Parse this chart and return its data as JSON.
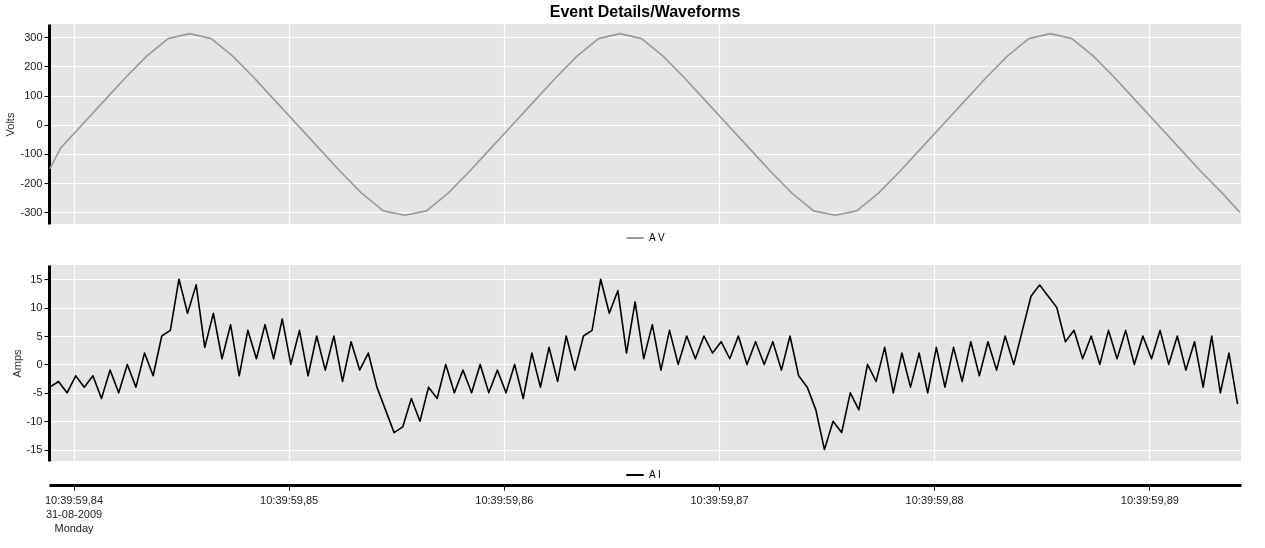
{
  "chart_data": [
    {
      "type": "line",
      "title": "Event Details/Waveforms",
      "ylabel": "Volts",
      "grid": true,
      "legend": "bottom",
      "tick_labels": "y",
      "xlim": [
        "2009-08-31T10:39:59.83886",
        "2009-08-31T10:39:59.89426"
      ],
      "ylim": [
        -340,
        345
      ],
      "yticks": [
        -300,
        -200,
        -100,
        0,
        100,
        200,
        300
      ],
      "xticks": [
        {
          "value": "2009-08-31T10:39:59.84",
          "label": null
        },
        {
          "value": "2009-08-31T10:39:59.85",
          "label": null
        },
        {
          "value": "2009-08-31T10:39:59.86",
          "label": null
        },
        {
          "value": "2009-08-31T10:39:59.87",
          "label": null
        },
        {
          "value": "2009-08-31T10:39:59.88",
          "label": null
        },
        {
          "value": "2009-08-31T10:39:59.89",
          "label": null
        }
      ],
      "series": [
        {
          "name": "A V",
          "color": "#999999",
          "x": [
            "2009-08-31T10:39:59.8389",
            "2009-08-31T10:39:59.8394",
            "2009-08-31T10:39:59.8404",
            "2009-08-31T10:39:59.8414",
            "2009-08-31T10:39:59.8424",
            "2009-08-31T10:39:59.8434",
            "2009-08-31T10:39:59.8444",
            "2009-08-31T10:39:59.8454",
            "2009-08-31T10:39:59.8464",
            "2009-08-31T10:39:59.8474",
            "2009-08-31T10:39:59.8484",
            "2009-08-31T10:39:59.8494",
            "2009-08-31T10:39:59.8504",
            "2009-08-31T10:39:59.8514",
            "2009-08-31T10:39:59.8524",
            "2009-08-31T10:39:59.8534",
            "2009-08-31T10:39:59.8544",
            "2009-08-31T10:39:59.8554",
            "2009-08-31T10:39:59.8564",
            "2009-08-31T10:39:59.8574",
            "2009-08-31T10:39:59.8584",
            "2009-08-31T10:39:59.8594",
            "2009-08-31T10:39:59.8604",
            "2009-08-31T10:39:59.8614",
            "2009-08-31T10:39:59.8624",
            "2009-08-31T10:39:59.8634",
            "2009-08-31T10:39:59.8644",
            "2009-08-31T10:39:59.8654",
            "2009-08-31T10:39:59.8664",
            "2009-08-31T10:39:59.8674",
            "2009-08-31T10:39:59.8684",
            "2009-08-31T10:39:59.8694",
            "2009-08-31T10:39:59.8704",
            "2009-08-31T10:39:59.8714",
            "2009-08-31T10:39:59.8724",
            "2009-08-31T10:39:59.8734",
            "2009-08-31T10:39:59.8744",
            "2009-08-31T10:39:59.8754",
            "2009-08-31T10:39:59.8764",
            "2009-08-31T10:39:59.8774",
            "2009-08-31T10:39:59.8784",
            "2009-08-31T10:39:59.8794",
            "2009-08-31T10:39:59.8804",
            "2009-08-31T10:39:59.8814",
            "2009-08-31T10:39:59.8824",
            "2009-08-31T10:39:59.8834",
            "2009-08-31T10:39:59.8844",
            "2009-08-31T10:39:59.8854",
            "2009-08-31T10:39:59.8864",
            "2009-08-31T10:39:59.8874",
            "2009-08-31T10:39:59.8884",
            "2009-08-31T10:39:59.8894",
            "2009-08-31T10:39:59.8904",
            "2009-08-31T10:39:59.8914",
            "2009-08-31T10:39:59.8924",
            "2009-08-31T10:39:59.8934",
            "2009-08-31T10:39:59.8942"
          ],
          "values": [
            -150,
            -80,
            0,
            80,
            160,
            235,
            295,
            312,
            295,
            235,
            160,
            80,
            0,
            -80,
            -160,
            -235,
            -295,
            -310,
            -295,
            -235,
            -160,
            -80,
            0,
            80,
            160,
            235,
            295,
            312,
            295,
            235,
            160,
            80,
            0,
            -80,
            -160,
            -235,
            -295,
            -310,
            -295,
            -235,
            -160,
            -80,
            0,
            80,
            160,
            235,
            295,
            312,
            295,
            235,
            160,
            80,
            0,
            -80,
            -160,
            -235,
            -300
          ]
        }
      ]
    },
    {
      "type": "line",
      "ylabel": "Amps",
      "grid": true,
      "legend": "bottom",
      "xlim": [
        "2009-08-31T10:39:59.83886",
        "2009-08-31T10:39:59.89426"
      ],
      "ylim": [
        -17,
        17.5
      ],
      "yticks": [
        -15,
        -10,
        -5,
        0,
        5,
        10,
        15
      ],
      "xticks": [
        {
          "value": "2009-08-31T10:39:59.84",
          "label": "10:39:59,84\n31-08-2009\nMonday"
        },
        {
          "value": "2009-08-31T10:39:59.85",
          "label": "10:39:59,85"
        },
        {
          "value": "2009-08-31T10:39:59.86",
          "label": "10:39:59,86"
        },
        {
          "value": "2009-08-31T10:39:59.87",
          "label": "10:39:59,87"
        },
        {
          "value": "2009-08-31T10:39:59.88",
          "label": "10:39:59,88"
        },
        {
          "value": "2009-08-31T10:39:59.89",
          "label": "10:39:59,89"
        }
      ],
      "series": [
        {
          "name": "A I",
          "color": "#000000",
          "x": [
            "2009-08-31T10:39:59.8389",
            "2009-08-31T10:39:59.8393",
            "2009-08-31T10:39:59.8397",
            "2009-08-31T10:39:59.8401",
            "2009-08-31T10:39:59.8405",
            "2009-08-31T10:39:59.8409",
            "2009-08-31T10:39:59.8413",
            "2009-08-31T10:39:59.8417",
            "2009-08-31T10:39:59.8421",
            "2009-08-31T10:39:59.8425",
            "2009-08-31T10:39:59.8429",
            "2009-08-31T10:39:59.8433",
            "2009-08-31T10:39:59.8437",
            "2009-08-31T10:39:59.8441",
            "2009-08-31T10:39:59.8445",
            "2009-08-31T10:39:59.8449",
            "2009-08-31T10:39:59.8453",
            "2009-08-31T10:39:59.8457",
            "2009-08-31T10:39:59.8461",
            "2009-08-31T10:39:59.8465",
            "2009-08-31T10:39:59.8469",
            "2009-08-31T10:39:59.8473",
            "2009-08-31T10:39:59.8477",
            "2009-08-31T10:39:59.8481",
            "2009-08-31T10:39:59.8485",
            "2009-08-31T10:39:59.8489",
            "2009-08-31T10:39:59.8493",
            "2009-08-31T10:39:59.8497",
            "2009-08-31T10:39:59.8501",
            "2009-08-31T10:39:59.8505",
            "2009-08-31T10:39:59.8509",
            "2009-08-31T10:39:59.8513",
            "2009-08-31T10:39:59.8517",
            "2009-08-31T10:39:59.8521",
            "2009-08-31T10:39:59.8525",
            "2009-08-31T10:39:59.8529",
            "2009-08-31T10:39:59.8533",
            "2009-08-31T10:39:59.8537",
            "2009-08-31T10:39:59.8541",
            "2009-08-31T10:39:59.8545",
            "2009-08-31T10:39:59.8549",
            "2009-08-31T10:39:59.8553",
            "2009-08-31T10:39:59.8557",
            "2009-08-31T10:39:59.8561",
            "2009-08-31T10:39:59.8565",
            "2009-08-31T10:39:59.8569",
            "2009-08-31T10:39:59.8573",
            "2009-08-31T10:39:59.8577",
            "2009-08-31T10:39:59.8581",
            "2009-08-31T10:39:59.8585",
            "2009-08-31T10:39:59.8589",
            "2009-08-31T10:39:59.8593",
            "2009-08-31T10:39:59.8597",
            "2009-08-31T10:39:59.8601",
            "2009-08-31T10:39:59.8605",
            "2009-08-31T10:39:59.8609",
            "2009-08-31T10:39:59.8613",
            "2009-08-31T10:39:59.8617",
            "2009-08-31T10:39:59.8621",
            "2009-08-31T10:39:59.8625",
            "2009-08-31T10:39:59.8629",
            "2009-08-31T10:39:59.8633",
            "2009-08-31T10:39:59.8637",
            "2009-08-31T10:39:59.8641",
            "2009-08-31T10:39:59.8645",
            "2009-08-31T10:39:59.8649",
            "2009-08-31T10:39:59.8653",
            "2009-08-31T10:39:59.8657",
            "2009-08-31T10:39:59.8661",
            "2009-08-31T10:39:59.8665",
            "2009-08-31T10:39:59.8669",
            "2009-08-31T10:39:59.8673",
            "2009-08-31T10:39:59.8677",
            "2009-08-31T10:39:59.8681",
            "2009-08-31T10:39:59.8685",
            "2009-08-31T10:39:59.8689",
            "2009-08-31T10:39:59.8693",
            "2009-08-31T10:39:59.8697",
            "2009-08-31T10:39:59.8701",
            "2009-08-31T10:39:59.8705",
            "2009-08-31T10:39:59.8709",
            "2009-08-31T10:39:59.8713",
            "2009-08-31T10:39:59.8717",
            "2009-08-31T10:39:59.8721",
            "2009-08-31T10:39:59.8725",
            "2009-08-31T10:39:59.8729",
            "2009-08-31T10:39:59.8733",
            "2009-08-31T10:39:59.8737",
            "2009-08-31T10:39:59.8741",
            "2009-08-31T10:39:59.8745",
            "2009-08-31T10:39:59.8749",
            "2009-08-31T10:39:59.8753",
            "2009-08-31T10:39:59.8757",
            "2009-08-31T10:39:59.8761",
            "2009-08-31T10:39:59.8765",
            "2009-08-31T10:39:59.8769",
            "2009-08-31T10:39:59.8773",
            "2009-08-31T10:39:59.8777",
            "2009-08-31T10:39:59.8781",
            "2009-08-31T10:39:59.8785",
            "2009-08-31T10:39:59.8789",
            "2009-08-31T10:39:59.8793",
            "2009-08-31T10:39:59.8797",
            "2009-08-31T10:39:59.8801",
            "2009-08-31T10:39:59.8805",
            "2009-08-31T10:39:59.8809",
            "2009-08-31T10:39:59.8813",
            "2009-08-31T10:39:59.8817",
            "2009-08-31T10:39:59.8821",
            "2009-08-31T10:39:59.8825",
            "2009-08-31T10:39:59.8829",
            "2009-08-31T10:39:59.8833",
            "2009-08-31T10:39:59.8837",
            "2009-08-31T10:39:59.8841",
            "2009-08-31T10:39:59.8845",
            "2009-08-31T10:39:59.8849",
            "2009-08-31T10:39:59.8853",
            "2009-08-31T10:39:59.8857",
            "2009-08-31T10:39:59.8861",
            "2009-08-31T10:39:59.8865",
            "2009-08-31T10:39:59.8869",
            "2009-08-31T10:39:59.8873",
            "2009-08-31T10:39:59.8877",
            "2009-08-31T10:39:59.8881",
            "2009-08-31T10:39:59.8885",
            "2009-08-31T10:39:59.8889",
            "2009-08-31T10:39:59.8893",
            "2009-08-31T10:39:59.8897",
            "2009-08-31T10:39:59.8901",
            "2009-08-31T10:39:59.8905",
            "2009-08-31T10:39:59.8909",
            "2009-08-31T10:39:59.8913",
            "2009-08-31T10:39:59.8917",
            "2009-08-31T10:39:59.8921",
            "2009-08-31T10:39:59.8925",
            "2009-08-31T10:39:59.8929",
            "2009-08-31T10:39:59.8933",
            "2009-08-31T10:39:59.8937",
            "2009-08-31T10:39:59.8941"
          ],
          "values": [
            -4,
            -3,
            -5,
            -2,
            -4,
            -2,
            -6,
            -1,
            -5,
            0,
            -4,
            2,
            -2,
            5,
            6,
            15,
            9,
            14,
            3,
            9,
            1,
            7,
            -2,
            6,
            1,
            7,
            1,
            8,
            0,
            6,
            -2,
            5,
            -1,
            5,
            -3,
            4,
            -1,
            2,
            -4,
            -8,
            -12,
            -11,
            -6,
            -10,
            -4,
            -6,
            0,
            -5,
            -1,
            -5,
            0,
            -5,
            -1,
            -5,
            0,
            -6,
            2,
            -4,
            3,
            -3,
            5,
            -1,
            5,
            6,
            15,
            9,
            13,
            2,
            11,
            1,
            7,
            -1,
            6,
            0,
            5,
            1,
            5,
            2,
            4,
            1,
            5,
            0,
            4,
            0,
            4,
            -1,
            5,
            -2,
            -4,
            -8,
            -15,
            -10,
            -12,
            -5,
            -8,
            0,
            -3,
            3,
            -5,
            2,
            -4,
            2,
            -5,
            3,
            -4,
            3,
            -3,
            4,
            -2,
            4,
            -1,
            5,
            0,
            6,
            12,
            14,
            12,
            10,
            4,
            6,
            1,
            5,
            0,
            6,
            1,
            6,
            0,
            5,
            1,
            6,
            0,
            5,
            -1,
            4,
            -4,
            5,
            -5,
            2,
            -7
          ]
        }
      ]
    }
  ]
}
